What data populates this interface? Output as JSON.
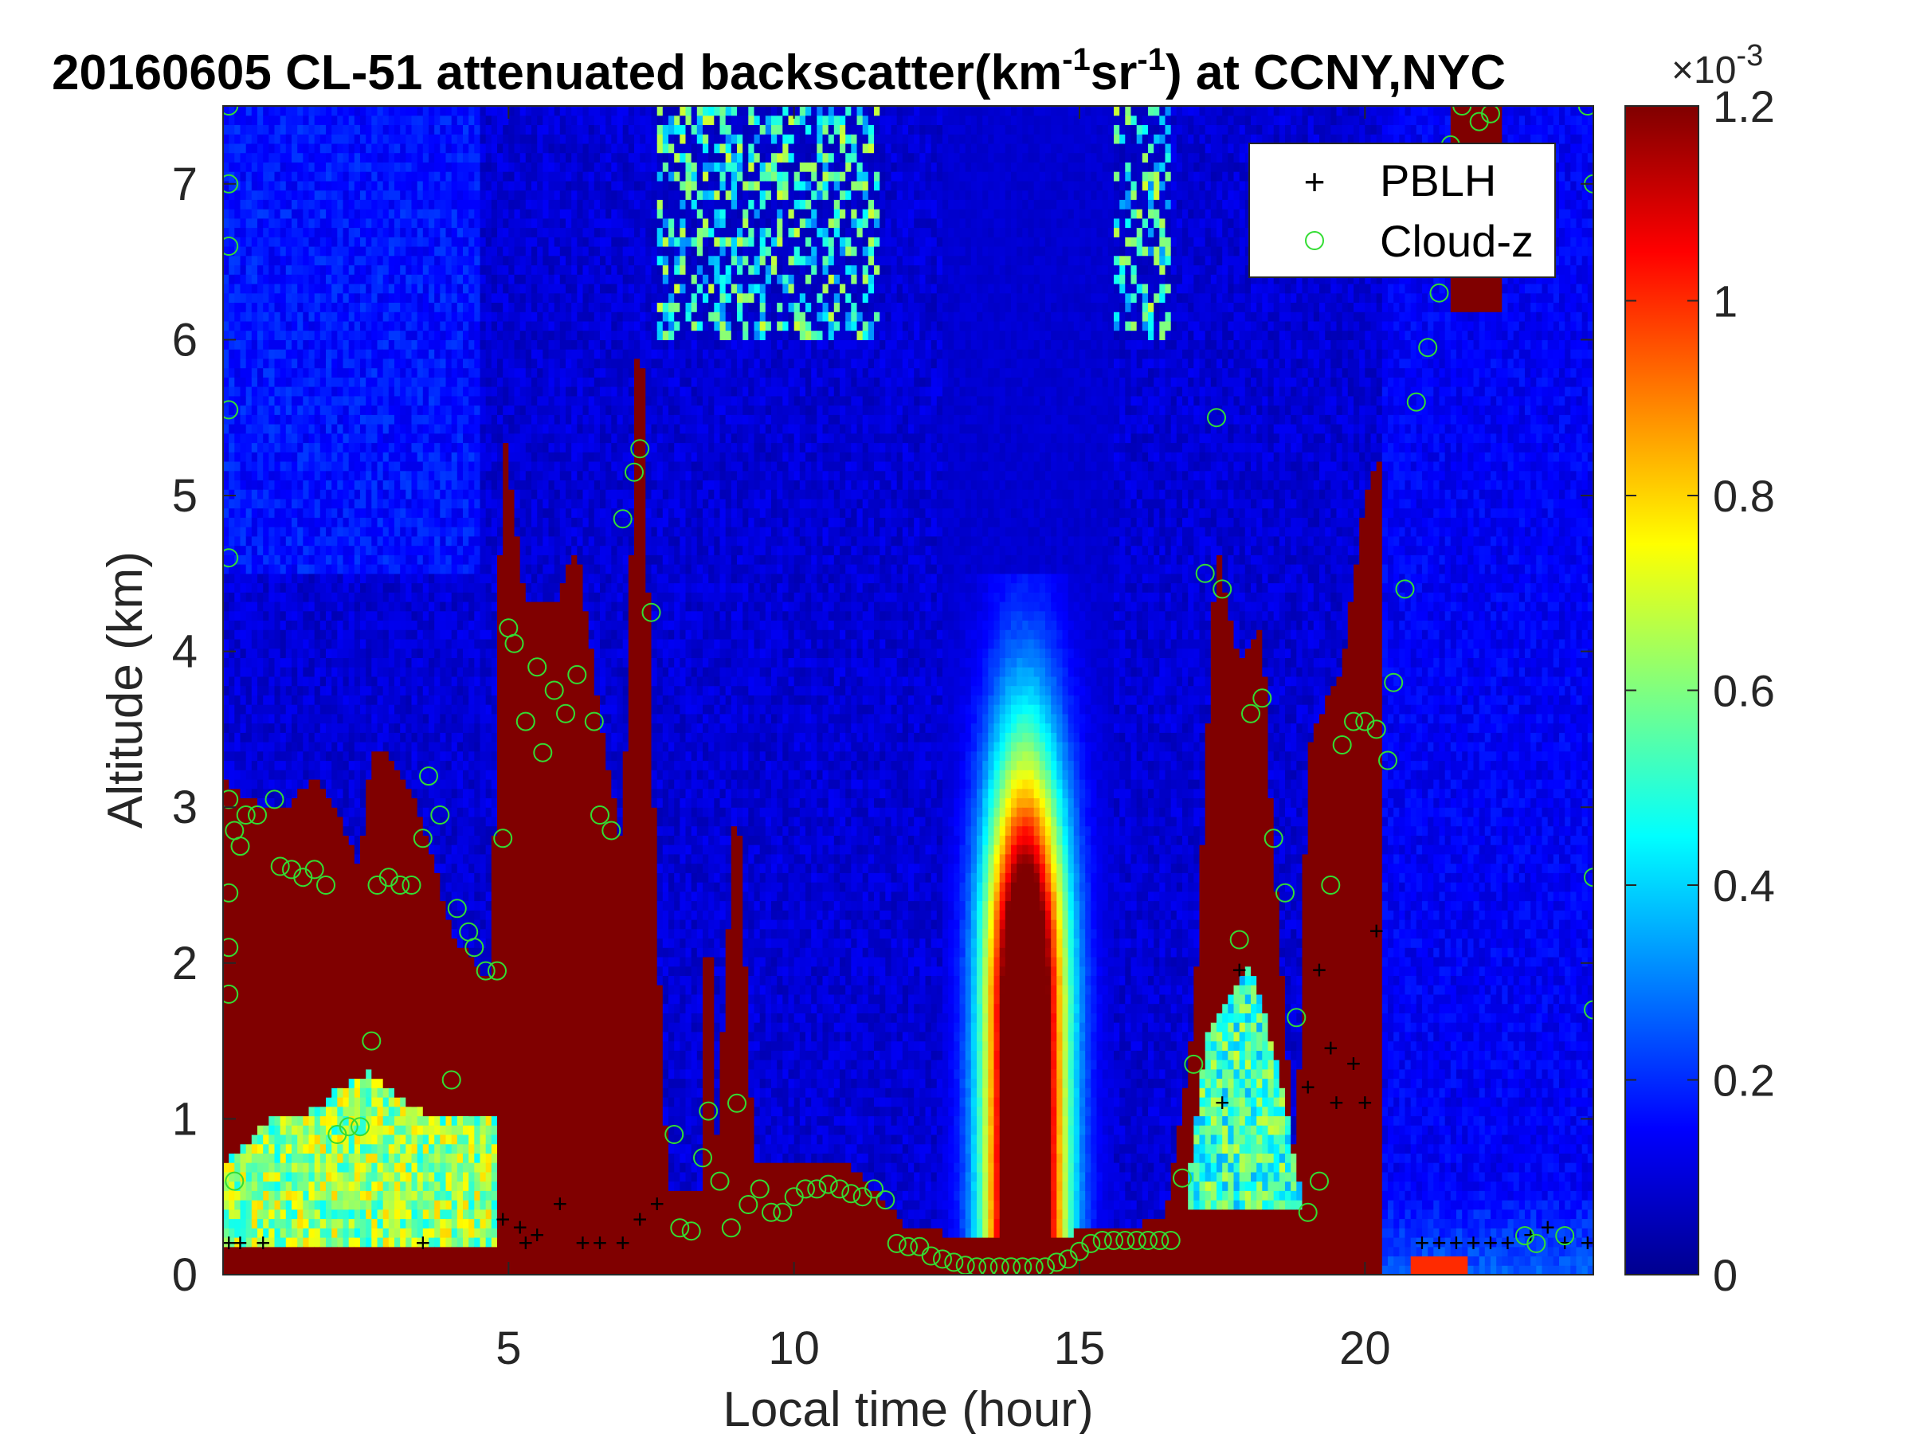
{
  "chart_data": {
    "type": "heatmap",
    "title_prefix": "20160605  CL-51 attenuated backscatter(km",
    "title_sup1": "-1",
    "title_mid": "sr",
    "title_sup2": "-1",
    "title_suffix": ") at CCNY,NYC",
    "xlabel": "Local time (hour)",
    "ylabel": "Altitude (km)",
    "xlim": [
      0,
      24
    ],
    "ylim": [
      0,
      7.5
    ],
    "x_ticks": [
      5,
      10,
      15,
      20
    ],
    "y_ticks": [
      0,
      1,
      2,
      3,
      4,
      5,
      6,
      7
    ],
    "colorbar": {
      "colormap": "jet",
      "range": [
        0,
        1.2
      ],
      "ticks": [
        0,
        0.2,
        0.4,
        0.6,
        0.8,
        1,
        1.2
      ],
      "tick_labels": [
        "0",
        "0.2",
        "0.4",
        "0.6",
        "0.8",
        "1",
        "1.2"
      ],
      "exponent_label": "×10",
      "exponent_sup": "-3"
    },
    "legend": {
      "position": "top-right",
      "entries": [
        {
          "label": "PBLH",
          "marker": "+",
          "color": "#000000"
        },
        {
          "label": "Cloud-z",
          "marker": "o",
          "color": "#33dd33"
        }
      ]
    },
    "pblh_marker": "+",
    "cloud_marker": "○",
    "series": [
      {
        "name": "PBLH",
        "points": [
          [
            0.1,
            0.2
          ],
          [
            0.3,
            0.2
          ],
          [
            0.7,
            0.2
          ],
          [
            3.5,
            0.2
          ],
          [
            4.9,
            0.35
          ],
          [
            5.2,
            0.3
          ],
          [
            5.3,
            0.2
          ],
          [
            5.5,
            0.25
          ],
          [
            5.9,
            0.45
          ],
          [
            6.3,
            0.2
          ],
          [
            6.6,
            0.2
          ],
          [
            7.0,
            0.2
          ],
          [
            7.3,
            0.35
          ],
          [
            7.6,
            0.45
          ],
          [
            17.5,
            1.1
          ],
          [
            17.8,
            1.95
          ],
          [
            19.2,
            1.95
          ],
          [
            19.4,
            1.45
          ],
          [
            19.0,
            1.2
          ],
          [
            19.5,
            1.1
          ],
          [
            19.8,
            1.35
          ],
          [
            20.0,
            1.1
          ],
          [
            20.2,
            2.2
          ],
          [
            21.0,
            0.2
          ],
          [
            21.3,
            0.2
          ],
          [
            21.6,
            0.2
          ],
          [
            21.9,
            0.2
          ],
          [
            22.2,
            0.2
          ],
          [
            22.5,
            0.2
          ],
          [
            22.9,
            0.25
          ],
          [
            23.2,
            0.3
          ],
          [
            23.5,
            0.2
          ],
          [
            23.9,
            0.2
          ]
        ]
      },
      {
        "name": "Cloud-z",
        "points": [
          [
            0.1,
            7.5
          ],
          [
            0.1,
            7.0
          ],
          [
            0.1,
            6.6
          ],
          [
            0.1,
            5.55
          ],
          [
            0.1,
            4.6
          ],
          [
            0.1,
            3.05
          ],
          [
            0.2,
            2.85
          ],
          [
            0.1,
            2.45
          ],
          [
            0.1,
            2.1
          ],
          [
            0.1,
            1.8
          ],
          [
            0.2,
            0.6
          ],
          [
            0.3,
            2.75
          ],
          [
            0.4,
            2.95
          ],
          [
            0.6,
            2.95
          ],
          [
            0.9,
            3.05
          ],
          [
            1.0,
            2.62
          ],
          [
            1.2,
            2.6
          ],
          [
            1.4,
            2.55
          ],
          [
            1.6,
            2.6
          ],
          [
            1.8,
            2.5
          ],
          [
            2.0,
            0.9
          ],
          [
            2.2,
            0.95
          ],
          [
            2.4,
            0.95
          ],
          [
            2.6,
            1.5
          ],
          [
            2.7,
            2.5
          ],
          [
            2.9,
            2.55
          ],
          [
            3.1,
            2.5
          ],
          [
            3.3,
            2.5
          ],
          [
            3.5,
            2.8
          ],
          [
            3.6,
            3.2
          ],
          [
            3.8,
            2.95
          ],
          [
            4.0,
            1.25
          ],
          [
            4.1,
            2.35
          ],
          [
            4.3,
            2.2
          ],
          [
            4.4,
            2.1
          ],
          [
            4.6,
            1.95
          ],
          [
            4.8,
            1.95
          ],
          [
            4.9,
            2.8
          ],
          [
            5.0,
            4.15
          ],
          [
            5.1,
            4.05
          ],
          [
            5.3,
            3.55
          ],
          [
            5.5,
            3.9
          ],
          [
            5.6,
            3.35
          ],
          [
            5.8,
            3.75
          ],
          [
            6.0,
            3.6
          ],
          [
            6.2,
            3.85
          ],
          [
            6.5,
            3.55
          ],
          [
            6.6,
            2.95
          ],
          [
            6.8,
            2.85
          ],
          [
            7.0,
            4.85
          ],
          [
            7.2,
            5.15
          ],
          [
            7.3,
            5.3
          ],
          [
            7.5,
            4.25
          ],
          [
            7.9,
            0.9
          ],
          [
            8.0,
            0.3
          ],
          [
            8.2,
            0.28
          ],
          [
            8.4,
            0.75
          ],
          [
            8.5,
            1.05
          ],
          [
            8.7,
            0.6
          ],
          [
            8.9,
            0.3
          ],
          [
            9.0,
            1.1
          ],
          [
            9.2,
            0.45
          ],
          [
            9.4,
            0.55
          ],
          [
            9.6,
            0.4
          ],
          [
            9.8,
            0.4
          ],
          [
            10.0,
            0.5
          ],
          [
            10.2,
            0.55
          ],
          [
            10.4,
            0.55
          ],
          [
            10.6,
            0.58
          ],
          [
            10.8,
            0.55
          ],
          [
            11.0,
            0.52
          ],
          [
            11.2,
            0.5
          ],
          [
            11.4,
            0.55
          ],
          [
            11.6,
            0.48
          ],
          [
            11.8,
            0.2
          ],
          [
            12.0,
            0.18
          ],
          [
            12.2,
            0.18
          ],
          [
            12.4,
            0.12
          ],
          [
            12.6,
            0.1
          ],
          [
            12.8,
            0.08
          ],
          [
            13.0,
            0.06
          ],
          [
            13.2,
            0.05
          ],
          [
            13.4,
            0.05
          ],
          [
            13.6,
            0.05
          ],
          [
            13.8,
            0.05
          ],
          [
            14.0,
            0.05
          ],
          [
            14.2,
            0.05
          ],
          [
            14.4,
            0.05
          ],
          [
            14.6,
            0.08
          ],
          [
            14.8,
            0.1
          ],
          [
            15.0,
            0.15
          ],
          [
            15.2,
            0.2
          ],
          [
            15.4,
            0.22
          ],
          [
            15.6,
            0.22
          ],
          [
            15.8,
            0.22
          ],
          [
            16.0,
            0.22
          ],
          [
            16.2,
            0.22
          ],
          [
            16.4,
            0.22
          ],
          [
            16.6,
            0.22
          ],
          [
            16.8,
            0.62
          ],
          [
            17.0,
            1.35
          ],
          [
            17.2,
            4.5
          ],
          [
            17.4,
            5.5
          ],
          [
            17.5,
            4.4
          ],
          [
            17.8,
            2.15
          ],
          [
            18.0,
            3.6
          ],
          [
            18.2,
            3.7
          ],
          [
            18.4,
            2.8
          ],
          [
            18.6,
            2.45
          ],
          [
            18.8,
            1.65
          ],
          [
            19.0,
            0.4
          ],
          [
            19.2,
            0.6
          ],
          [
            19.4,
            2.5
          ],
          [
            19.6,
            3.4
          ],
          [
            19.8,
            3.55
          ],
          [
            20.0,
            3.55
          ],
          [
            20.2,
            3.5
          ],
          [
            20.4,
            3.3
          ],
          [
            20.5,
            3.8
          ],
          [
            20.7,
            4.4
          ],
          [
            20.9,
            5.6
          ],
          [
            21.1,
            5.95
          ],
          [
            21.3,
            6.3
          ],
          [
            21.5,
            7.25
          ],
          [
            21.7,
            7.5
          ],
          [
            22.0,
            7.4
          ],
          [
            22.2,
            7.45
          ],
          [
            22.8,
            0.25
          ],
          [
            23.0,
            0.2
          ],
          [
            23.5,
            0.25
          ],
          [
            23.9,
            7.5
          ],
          [
            24.0,
            7.0
          ],
          [
            24.0,
            2.55
          ],
          [
            24.0,
            1.7
          ]
        ]
      }
    ],
    "field_description": "attenuated backscatter (×1e-3 km⁻¹sr⁻¹); saturated (>=1.2) cloud regions, low background elsewhere, diurnal aerosol column peaking ~1.7 at 1.5-2 km near 14 h"
  }
}
